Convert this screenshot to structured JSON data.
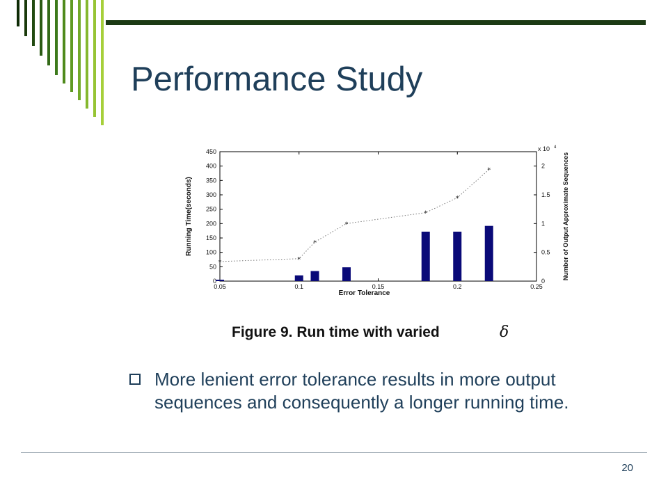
{
  "slide": {
    "title": "Performance Study",
    "bullet": "More lenient error tolerance results in more output sequences and consequently a longer running time.",
    "page_number": "20"
  },
  "colors": {
    "title_text": "#1f3f5a",
    "top_bar": "#1c3a14",
    "bar_fill": "#0a0a78",
    "stripe_dark": "#0d2b05",
    "stripe_mid": "#4f8a1c",
    "stripe_light": "#a6cf3a"
  },
  "chart_data": {
    "type": "bar",
    "caption": "Figure 9. Run time with varied",
    "caption_symbol": "δ",
    "xlabel": "Error Tolerance",
    "ylabel": "Running Time(seconds)",
    "y2label": "Number of Output Approximate Sequences",
    "y2_multiplier": "x 10",
    "y2_multiplier_exp": "4",
    "xlim": [
      0.05,
      0.25
    ],
    "ylim": [
      0,
      450
    ],
    "y2lim": [
      0,
      2.25
    ],
    "x_ticks": [
      "0.05",
      "0.1",
      "0.15",
      "0.2",
      "0.25"
    ],
    "y_ticks": [
      "0",
      "50",
      "100",
      "150",
      "200",
      "250",
      "300",
      "350",
      "400",
      "450"
    ],
    "y2_ticks": [
      "0",
      "0.5",
      "1",
      "1.5",
      "2"
    ],
    "series": [
      {
        "kind": "bar",
        "axis": "left",
        "x": [
          0.05,
          0.1,
          0.11,
          0.13,
          0.18,
          0.2,
          0.22
        ],
        "values": [
          5,
          20,
          35,
          48,
          172,
          172,
          192
        ]
      },
      {
        "kind": "dotted-line",
        "axis": "right",
        "marker": "star",
        "x": [
          0.05,
          0.1,
          0.11,
          0.13,
          0.18,
          0.2,
          0.22
        ],
        "values": [
          0.34,
          0.39,
          0.68,
          1.0,
          1.19,
          1.45,
          1.94
        ]
      }
    ]
  }
}
